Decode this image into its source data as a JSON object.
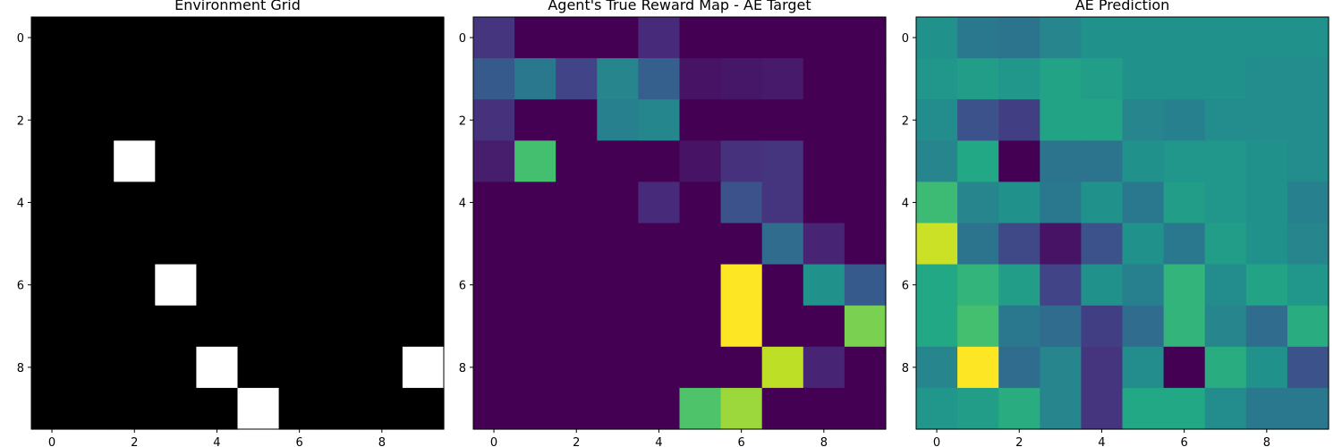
{
  "chart_data": [
    {
      "type": "heatmap",
      "title": "Environment Grid",
      "colormap": "gray",
      "vmin": 0,
      "vmax": 1,
      "xlabel": "",
      "ylabel": "",
      "xticks": [
        "0",
        "2",
        "4",
        "6",
        "8"
      ],
      "yticks": [
        "0",
        "2",
        "4",
        "6",
        "8"
      ],
      "values": [
        [
          0,
          0,
          0,
          0,
          0,
          0,
          0,
          0,
          0,
          0
        ],
        [
          0,
          0,
          0,
          0,
          0,
          0,
          0,
          0,
          0,
          0
        ],
        [
          0,
          0,
          0,
          0,
          0,
          0,
          0,
          0,
          0,
          0
        ],
        [
          0,
          0,
          1,
          0,
          0,
          0,
          0,
          0,
          0,
          0
        ],
        [
          0,
          0,
          0,
          0,
          0,
          0,
          0,
          0,
          0,
          0
        ],
        [
          0,
          0,
          0,
          0,
          0,
          0,
          0,
          0,
          0,
          0
        ],
        [
          0,
          0,
          0,
          1,
          0,
          0,
          0,
          0,
          0,
          0
        ],
        [
          0,
          0,
          0,
          0,
          0,
          0,
          0,
          0,
          0,
          0
        ],
        [
          0,
          0,
          0,
          0,
          1,
          0,
          0,
          0,
          0,
          1
        ],
        [
          0,
          0,
          0,
          0,
          0,
          1,
          0,
          0,
          0,
          0
        ]
      ]
    },
    {
      "type": "heatmap",
      "title": "Agent's True Reward Map - AE Target",
      "colormap": "viridis",
      "vmin": 0,
      "vmax": 1,
      "xlabel": "",
      "ylabel": "",
      "xticks": [
        "0",
        "2",
        "4",
        "6",
        "8"
      ],
      "yticks": [
        "0",
        "2",
        "4",
        "6",
        "8"
      ],
      "values": [
        [
          0.15,
          0,
          0,
          0,
          0.12,
          0,
          0,
          0,
          0,
          0
        ],
        [
          0.28,
          0.4,
          0.2,
          0.45,
          0.3,
          0.05,
          0.06,
          0.07,
          0,
          0
        ],
        [
          0.14,
          0,
          0,
          0.43,
          0.46,
          0,
          0,
          0,
          0,
          0
        ],
        [
          0.08,
          0.7,
          0,
          0,
          0,
          0.05,
          0.14,
          0.15,
          0,
          0
        ],
        [
          0,
          0,
          0,
          0,
          0.12,
          0,
          0.25,
          0.15,
          0,
          0
        ],
        [
          0,
          0,
          0,
          0,
          0,
          0,
          0,
          0.35,
          0.1,
          0
        ],
        [
          0,
          0,
          0,
          0,
          0,
          0,
          1.0,
          0,
          0.5,
          0.28
        ],
        [
          0,
          0,
          0,
          0,
          0,
          0,
          1.0,
          0,
          0,
          0.8
        ],
        [
          0,
          0,
          0,
          0,
          0,
          0,
          0,
          0.9,
          0.1,
          0
        ],
        [
          0,
          0,
          0,
          0,
          0,
          0.72,
          0.85,
          0,
          0,
          0
        ]
      ]
    },
    {
      "type": "heatmap",
      "title": "AE Prediction",
      "colormap": "viridis",
      "vmin": 0,
      "vmax": 1,
      "xlabel": "",
      "ylabel": "",
      "xticks": [
        "0",
        "2",
        "4",
        "6",
        "8"
      ],
      "yticks": [
        "0",
        "2",
        "4",
        "6",
        "8"
      ],
      "values": [
        [
          0.5,
          0.4,
          0.38,
          0.45,
          0.5,
          0.5,
          0.5,
          0.5,
          0.5,
          0.5
        ],
        [
          0.52,
          0.55,
          0.52,
          0.58,
          0.55,
          0.5,
          0.5,
          0.5,
          0.48,
          0.48
        ],
        [
          0.48,
          0.25,
          0.18,
          0.58,
          0.58,
          0.45,
          0.43,
          0.48,
          0.48,
          0.48
        ],
        [
          0.45,
          0.6,
          0.0,
          0.38,
          0.38,
          0.5,
          0.52,
          0.52,
          0.5,
          0.48
        ],
        [
          0.68,
          0.45,
          0.5,
          0.4,
          0.5,
          0.4,
          0.55,
          0.52,
          0.5,
          0.43
        ],
        [
          0.92,
          0.38,
          0.22,
          0.05,
          0.25,
          0.5,
          0.4,
          0.55,
          0.5,
          0.45
        ],
        [
          0.6,
          0.65,
          0.55,
          0.2,
          0.5,
          0.43,
          0.65,
          0.48,
          0.58,
          0.52
        ],
        [
          0.6,
          0.7,
          0.4,
          0.35,
          0.18,
          0.35,
          0.65,
          0.45,
          0.35,
          0.62
        ],
        [
          0.45,
          1.0,
          0.35,
          0.45,
          0.15,
          0.48,
          0.0,
          0.62,
          0.5,
          0.25
        ],
        [
          0.52,
          0.55,
          0.62,
          0.45,
          0.15,
          0.6,
          0.6,
          0.48,
          0.4,
          0.4
        ]
      ]
    }
  ]
}
